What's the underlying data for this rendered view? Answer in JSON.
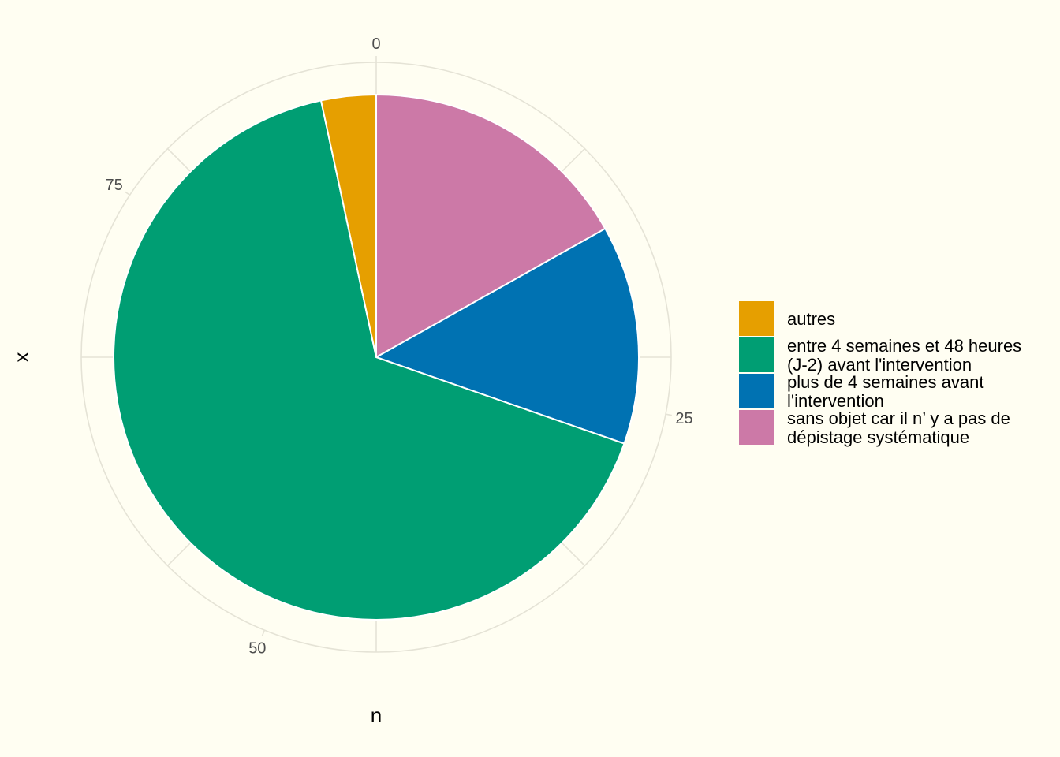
{
  "chart_data": {
    "type": "pie",
    "xlabel": "n",
    "ylabel": "x",
    "axis_ticks": [
      0,
      25,
      50,
      75
    ],
    "total": 89,
    "grid": true,
    "legend_position": "right",
    "series": [
      {
        "name": "sans objet car il n’ y a pas de dépistage systématique",
        "value": 15,
        "color": "#CC79A7",
        "legend_lines": [
          "sans objet car il n’ y a pas de",
          "dépistage systématique"
        ]
      },
      {
        "name": "plus de 4 semaines avant l'intervention",
        "value": 12,
        "color": "#0072B2",
        "legend_lines": [
          "plus de 4 semaines avant",
          "l'intervention"
        ]
      },
      {
        "name": "entre 4 semaines et 48 heures (J-2) avant l'intervention",
        "value": 59,
        "color": "#009E73",
        "legend_lines": [
          "entre 4 semaines et 48 heures",
          "(J-2) avant l'intervention"
        ]
      },
      {
        "name": "autres",
        "value": 3,
        "color": "#E69F00",
        "legend_lines": [
          "autres"
        ]
      }
    ],
    "legend_order": [
      "autres",
      "entre 4 semaines et 48 heures (J-2) avant l'intervention",
      "plus de 4 semaines avant l'intervention",
      "sans objet car il n’ y a pas de dépistage systématique"
    ],
    "colors": {
      "background": "#FFFEF2",
      "grid": "#E5E3D6",
      "tick_text": "#4d4d4d"
    }
  }
}
